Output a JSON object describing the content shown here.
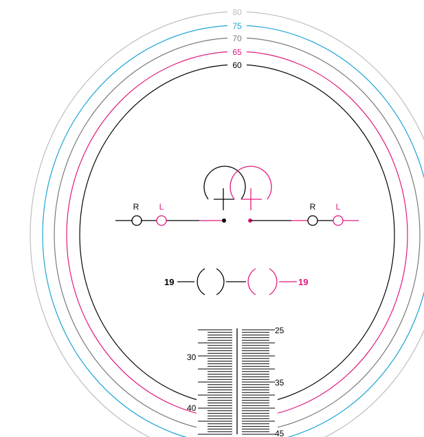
{
  "rings": [
    {
      "label": "80",
      "color": "#bdbdbd"
    },
    {
      "label": "75",
      "color": "#1aa3d6"
    },
    {
      "label": "70",
      "color": "#7a7a7a"
    },
    {
      "label": "65",
      "color": "#e0197d"
    },
    {
      "label": "60",
      "color": "#000000"
    }
  ],
  "colors": {
    "right": "#000000",
    "left": "#e0197d"
  },
  "markers": {
    "r_label": "R",
    "l_label": "L"
  },
  "size": {
    "right_value": "19",
    "left_value": "19"
  },
  "scale": {
    "labels": [
      "25",
      "30",
      "35",
      "40",
      "45"
    ]
  }
}
